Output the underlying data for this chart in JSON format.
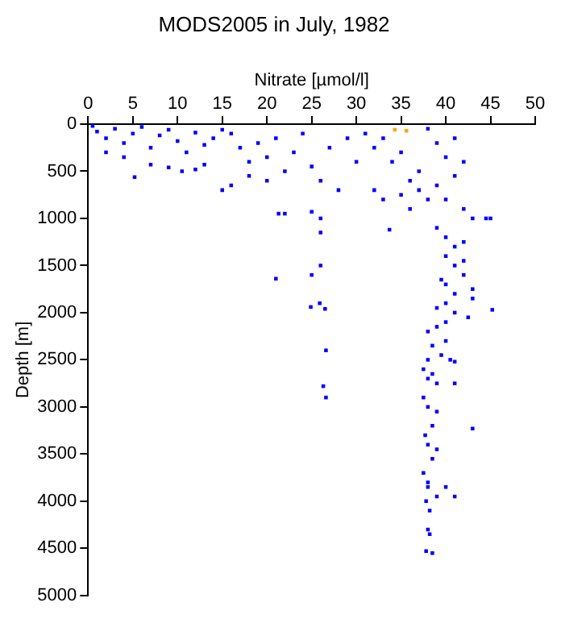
{
  "chart_data": {
    "type": "scatter",
    "title": "MODS2005 in July, 1982",
    "xlabel": "Nitrate [µmol/l]",
    "ylabel": "Depth [m]",
    "xlim": [
      0,
      50
    ],
    "xticks": [
      0,
      5,
      10,
      15,
      20,
      25,
      30,
      35,
      40,
      45,
      50
    ],
    "ylim": [
      5000,
      0
    ],
    "yticks": [
      0,
      500,
      1000,
      1500,
      2000,
      2500,
      3000,
      3500,
      4000,
      4500,
      5000
    ],
    "grid": false,
    "legend": false,
    "marker": "square",
    "series": [
      {
        "color": "#0000ff",
        "x": [
          0.5,
          1,
          2,
          3,
          4,
          5,
          6,
          7,
          8,
          9,
          10,
          11,
          12,
          13,
          14,
          15,
          2,
          4,
          5.2,
          7,
          9,
          10.5,
          12,
          13,
          16,
          17,
          18,
          19,
          20,
          21,
          22,
          23,
          24,
          25,
          26,
          27,
          28,
          29,
          30,
          15,
          16,
          18,
          20,
          21.3,
          22,
          25,
          26,
          26,
          26,
          21,
          25,
          24.9,
          25.9,
          26.5,
          26.6,
          26.3,
          26.6,
          31,
          32,
          33,
          34,
          35,
          36,
          37,
          38,
          36,
          37,
          35,
          33,
          32,
          33.7,
          38,
          39,
          40,
          41,
          42,
          41,
          39,
          40,
          42,
          43,
          44.5,
          45,
          39,
          40,
          41,
          42,
          40,
          41,
          42,
          40,
          41,
          39.5,
          43,
          42,
          40,
          41,
          42.5,
          45.2,
          43,
          39,
          38,
          39,
          40,
          38.5,
          39.5,
          38,
          40,
          37.5,
          38,
          39,
          38.5,
          41,
          37.5,
          38,
          39,
          38.5,
          37.7,
          38,
          39,
          38.5,
          37.5,
          38,
          38,
          39,
          40,
          41,
          37.8,
          38.2,
          38,
          38.2,
          37.8,
          38.5,
          43,
          40.5,
          41
        ],
        "values": [
          20,
          80,
          150,
          50,
          200,
          100,
          30,
          250,
          120,
          60,
          180,
          300,
          90,
          220,
          150,
          60,
          300,
          350,
          563,
          430,
          460,
          500,
          480,
          430,
          100,
          250,
          400,
          200,
          350,
          150,
          500,
          300,
          100,
          450,
          600,
          250,
          700,
          150,
          400,
          700,
          650,
          550,
          600,
          950,
          950,
          930,
          1150,
          1000,
          1500,
          1640,
          1600,
          1940,
          1900,
          1960,
          2400,
          2780,
          2900,
          100,
          250,
          150,
          400,
          300,
          600,
          500,
          800,
          900,
          700,
          750,
          800,
          700,
          1120,
          50,
          200,
          350,
          150,
          400,
          550,
          650,
          800,
          900,
          1000,
          1000,
          1000,
          1100,
          1200,
          1300,
          1250,
          1400,
          1500,
          1450,
          1700,
          1800,
          1650,
          1750,
          1600,
          1900,
          2000,
          2050,
          1970,
          1850,
          1950,
          2200,
          2150,
          2100,
          2350,
          2450,
          2500,
          2300,
          2600,
          2700,
          2750,
          2650,
          2750,
          2900,
          3000,
          3050,
          3200,
          3300,
          3400,
          3450,
          3550,
          3700,
          3800,
          3850,
          3950,
          3850,
          3950,
          4000,
          4100,
          4300,
          4350,
          4530,
          4550,
          3230,
          2500,
          2520
        ]
      },
      {
        "color": "#ffa500",
        "x": [
          34.3,
          35.6
        ],
        "values": [
          60,
          70
        ]
      }
    ]
  }
}
